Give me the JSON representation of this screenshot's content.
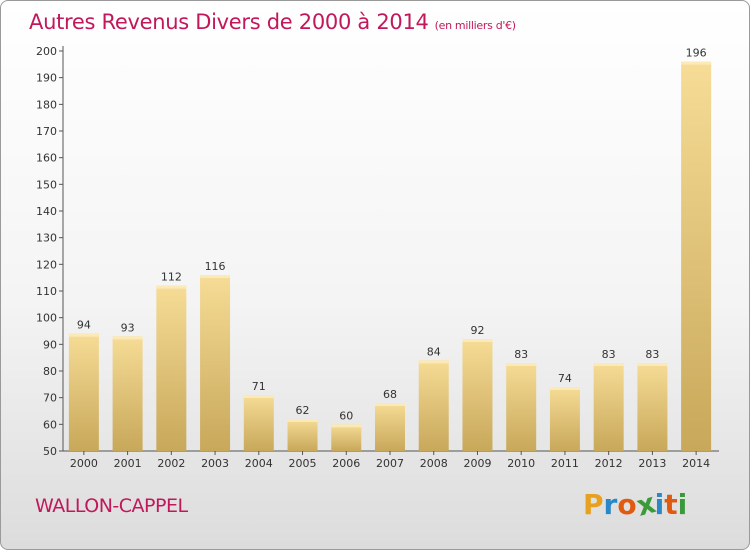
{
  "header": {
    "title": "Autres Revenus Divers de 2000 à 2014",
    "unit": "(en milliers d'€)"
  },
  "footer": {
    "commune": "WALLON-CAPPEL",
    "logo_text": "Proxiti",
    "logo_colors": [
      "#e8a020",
      "#2a88c8",
      "#e05a10",
      "#3a9a3a",
      "#2a88c8",
      "#e05a10",
      "#3a9a3a"
    ]
  },
  "chart_data": {
    "type": "bar",
    "title": "Autres Revenus Divers de 2000 à 2014",
    "subtitle": "(en milliers d'€)",
    "categories": [
      "2000",
      "2001",
      "2002",
      "2003",
      "2004",
      "2005",
      "2006",
      "2007",
      "2008",
      "2009",
      "2010",
      "2011",
      "2012",
      "2013",
      "2014"
    ],
    "values": [
      94,
      93,
      112,
      116,
      71,
      62,
      60,
      68,
      84,
      92,
      83,
      74,
      83,
      83,
      196
    ],
    "ylim": [
      50,
      200
    ],
    "yticks": [
      50,
      60,
      70,
      80,
      90,
      100,
      110,
      120,
      130,
      140,
      150,
      160,
      170,
      180,
      190,
      200
    ],
    "grid": false,
    "bar_color": "#e8cc80"
  }
}
